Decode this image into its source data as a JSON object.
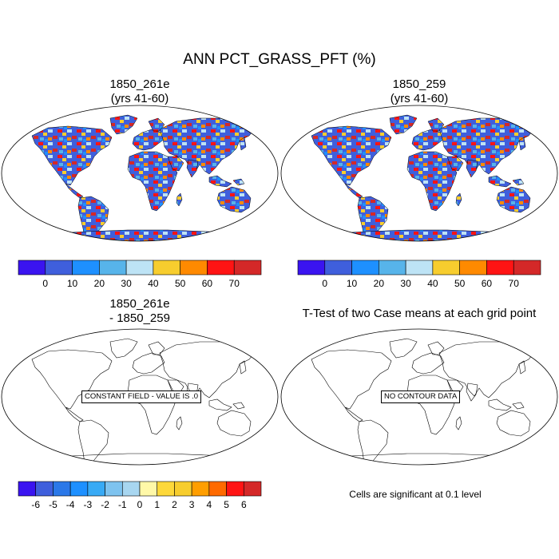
{
  "title": "ANN PCT_GRASS_PFT (%)",
  "panels": [
    {
      "title_line1": "1850_261e",
      "title_line2": "(yrs 41-60)",
      "type": "field"
    },
    {
      "title_line1": "1850_259",
      "title_line2": "(yrs 41-60)",
      "type": "field"
    },
    {
      "title_line1": "1850_261e",
      "title_line2": "- 1850_259",
      "type": "difference",
      "message": "CONSTANT FIELD - VALUE IS .0"
    },
    {
      "title_line1": "T-Test of two Case means at each grid point",
      "title_line2": "",
      "type": "ttest",
      "message": "NO CONTOUR DATA"
    }
  ],
  "colorbar_main": {
    "labels": [
      "0",
      "10",
      "20",
      "30",
      "40",
      "50",
      "60",
      "70"
    ],
    "colors": [
      "#3a14f0",
      "#3f5fdc",
      "#1e90ff",
      "#57b4ea",
      "#bde3f5",
      "#f7cd2e",
      "#ff8a00",
      "#ff1414",
      "#d42828"
    ]
  },
  "colorbar_diff": {
    "labels": [
      "-6",
      "-5",
      "-4",
      "-3",
      "-2",
      "-1",
      "0",
      "1",
      "2",
      "3",
      "4",
      "5",
      "6"
    ],
    "colors": [
      "#3a14f0",
      "#3f5fdc",
      "#2b78e8",
      "#1e90ff",
      "#38aaf5",
      "#7ec3ef",
      "#a8d6f0",
      "#fff8a8",
      "#fdd83a",
      "#f7cd2e",
      "#ff9e00",
      "#ff6a00",
      "#ff1414",
      "#d42828"
    ]
  },
  "significance_note": "Cells are significant at 0.1 level"
}
